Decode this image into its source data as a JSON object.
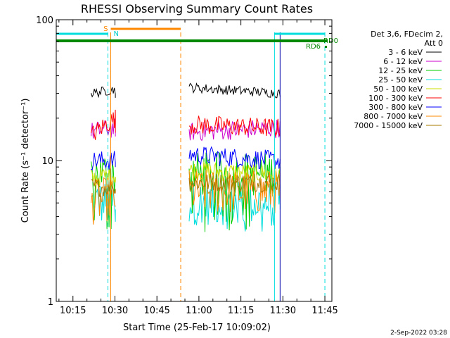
{
  "title": "RHESSI Observing Summary Count Rates",
  "footer_date": "2-Sep-2022 03:28",
  "legend_header": [
    "Det 3,6, FDecim 2,",
    "Att 0"
  ],
  "chart_data": {
    "type": "line",
    "title": "RHESSI Observing Summary Count Rates",
    "xlabel": "Start Time (25-Feb-17 10:09:02)",
    "ylabel": "Count Rate (s⁻¹ detector⁻¹)",
    "yscale": "log",
    "ylim": [
      1,
      100
    ],
    "xlim": [
      "10:09:02",
      "11:47:30"
    ],
    "grid": false,
    "legend_placement": "right",
    "x_ticks": [
      "10:15",
      "10:30",
      "10:45",
      "11:00",
      "11:15",
      "11:30",
      "11:45"
    ],
    "y_ticks": [
      "1",
      "10",
      "100"
    ],
    "data_segments": [
      {
        "start": "10:21:30",
        "end": "10:30:10"
      },
      {
        "start": "10:56:30",
        "end": "11:29:00"
      }
    ],
    "series": [
      {
        "name": "3 - 6 keV",
        "color": "#000000",
        "values": [
          [
            30,
            32
          ],
          [
            33,
            30
          ]
        ]
      },
      {
        "name": "6 - 12 keV",
        "color": "#cc00cc",
        "values": [
          [
            16,
            17
          ],
          [
            16,
            17
          ]
        ]
      },
      {
        "name": "12 - 25 keV",
        "color": "#00cc00",
        "values": [
          [
            8,
            8
          ],
          [
            8,
            8
          ]
        ]
      },
      {
        "name": "25 - 50 keV",
        "color": "#00dddd",
        "values": [
          [
            5,
            5
          ],
          [
            5,
            5
          ]
        ]
      },
      {
        "name": "50 - 100 keV",
        "color": "#ccdd00",
        "values": [
          [
            7.5,
            8
          ],
          [
            8.5,
            8
          ]
        ]
      },
      {
        "name": "100 - 300 keV",
        "color": "#ff0000",
        "values": [
          [
            15,
            20
          ],
          [
            18,
            17
          ]
        ]
      },
      {
        "name": "300 - 800 keV",
        "color": "#0000ff",
        "values": [
          [
            10,
            10
          ],
          [
            11,
            10
          ]
        ]
      },
      {
        "name": "800 - 7000 keV",
        "color": "#ff8800",
        "values": [
          [
            5,
            5.5
          ],
          [
            6,
            6
          ]
        ]
      },
      {
        "name": "7000 - 15000 keV",
        "color": "#aa7700",
        "values": [
          [
            6.5,
            6.5
          ],
          [
            7,
            7
          ]
        ]
      }
    ],
    "annotations": {
      "saa_flag": "S",
      "night_flag": "N",
      "rd6_flag": "RD6",
      "rd0_flag": "RD0",
      "saa_interval": {
        "start": "10:28:30",
        "end": "10:53:30",
        "color": "#ff8800"
      },
      "night_bars": [
        {
          "start": "10:09:02",
          "end": "10:27:30",
          "color": "#00dddd"
        },
        {
          "start": "11:27:00",
          "end": "11:45:00",
          "color": "#00dddd"
        }
      ],
      "rd6_bar": {
        "start": "10:09:02",
        "end": "11:46:00",
        "color": "#008800"
      },
      "vertical_lines": [
        {
          "time": "10:27:30",
          "style": "dashed",
          "color": "#00dddd"
        },
        {
          "time": "10:28:30",
          "style": "solid",
          "color": "#ff8800"
        },
        {
          "time": "10:53:30",
          "style": "dashed",
          "color": "#ff8800"
        },
        {
          "time": "11:27:00",
          "style": "solid",
          "color": "#00dddd"
        },
        {
          "time": "11:29:00",
          "style": "solid",
          "color": "#0000aa"
        },
        {
          "time": "11:45:00",
          "style": "dashed",
          "color": "#00dddd"
        }
      ]
    }
  }
}
